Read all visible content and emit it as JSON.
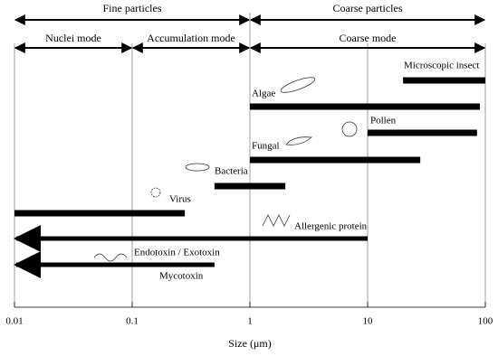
{
  "chart_data": {
    "type": "range-bar",
    "xlabel": "Size (μm)",
    "xscale": "log",
    "xlim": [
      0.01,
      100
    ],
    "xticks": [
      0.01,
      0.1,
      1,
      10,
      100
    ],
    "grid": true,
    "color": "#000000",
    "bands": [
      [
        {
          "label": "Fine particles",
          "range": [
            0.01,
            1
          ]
        },
        {
          "label": "Coarse particles",
          "range": [
            1,
            100
          ]
        }
      ],
      [
        {
          "label": "Nuclei mode",
          "range": [
            0.01,
            0.1
          ]
        },
        {
          "label": "Accumulation mode",
          "range": [
            0.1,
            1
          ]
        },
        {
          "label": "Coarse mode",
          "range": [
            1,
            100
          ]
        }
      ]
    ],
    "bars": [
      {
        "labels": [
          "Microscopic insect"
        ],
        "range": [
          20,
          100
        ],
        "arrow_left": false
      },
      {
        "labels": [
          "Algae"
        ],
        "range": [
          1,
          90
        ],
        "arrow_left": false
      },
      {
        "labels": [
          "Pollen"
        ],
        "range": [
          10,
          85
        ],
        "arrow_left": false
      },
      {
        "labels": [
          "Fungal"
        ],
        "range": [
          1,
          28
        ],
        "arrow_left": false
      },
      {
        "labels": [
          "Bacteria"
        ],
        "range": [
          0.5,
          2
        ],
        "arrow_left": false
      },
      {
        "labels": [
          "Virus"
        ],
        "range": [
          0.01,
          0.28
        ],
        "arrow_left": false
      },
      {
        "labels": [
          "Allergenic protein"
        ],
        "range": [
          0.01,
          10
        ],
        "arrow_left": true
      },
      {
        "labels": [
          "Endotoxin / Exotoxin",
          "Mycotoxin"
        ],
        "range": [
          0.01,
          0.5
        ],
        "arrow_left": true
      }
    ]
  }
}
